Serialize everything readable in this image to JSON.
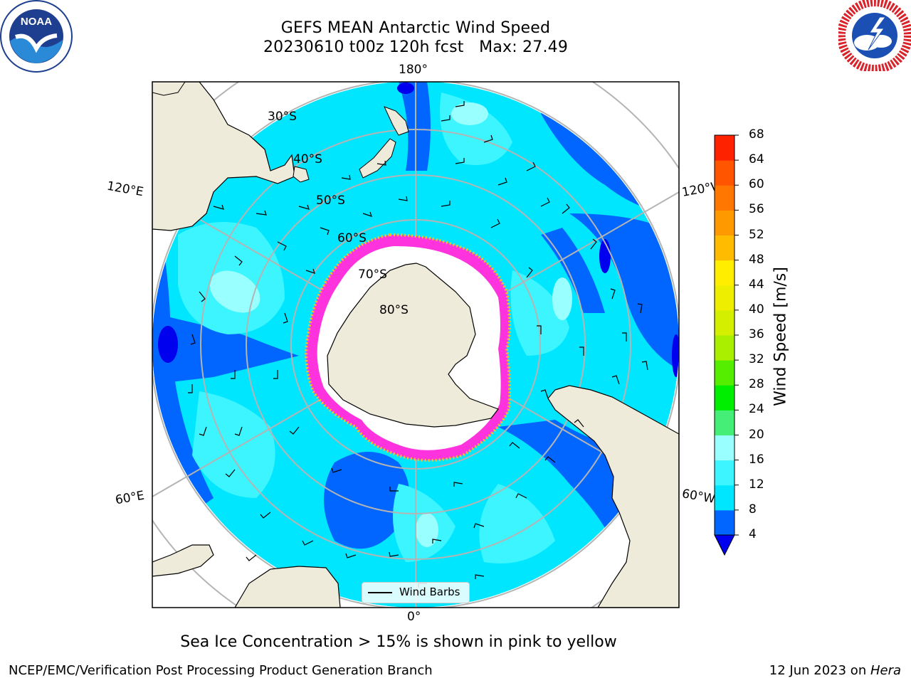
{
  "title": "GEFS MEAN Antarctic Wind Speed",
  "subtitle": {
    "run": "20230610 t00z 120h fcst",
    "max": "Max: 27.49"
  },
  "logos": {
    "left": {
      "icon": "noaa-logo",
      "text": "NOAA"
    },
    "right": {
      "icon": "national-weather-service-logo"
    }
  },
  "map": {
    "projection": "south-polar-stereographic",
    "longitude_labels": {
      "top": "180°",
      "bottom": "0°",
      "upper_left": "120°E",
      "upper_right": "120°W",
      "lower_left": "60°E",
      "lower_right": "60°W"
    },
    "latitude_labels": [
      "30°S",
      "40°S",
      "50°S",
      "60°S",
      "70°S",
      "80°S"
    ],
    "colors": {
      "land": "#efebda",
      "sea_ice_interior": "#ffffff",
      "sea_ice_edge_pink": "#ff33dd",
      "sea_ice_edge_yellow": "#ffc020",
      "gridline": "#b4b4b4"
    }
  },
  "legend": {
    "label": "Wind Barbs"
  },
  "colorbar": {
    "label": "Wind Speed [m/s]",
    "ticks": [
      "4",
      "8",
      "12",
      "16",
      "20",
      "24",
      "28",
      "32",
      "36",
      "40",
      "44",
      "48",
      "52",
      "56",
      "60",
      "64",
      "68"
    ],
    "colors": [
      "#0066ff",
      "#00e6ff",
      "#3cf5ff",
      "#99ffff",
      "#44ee77",
      "#00ee00",
      "#55ee00",
      "#aaee00",
      "#d4f000",
      "#eeee00",
      "#ffee00",
      "#ffbb00",
      "#ff9900",
      "#ff7700",
      "#ff5500",
      "#ff2200"
    ],
    "under_color": "#0000ee"
  },
  "caption": "Sea Ice Concentration > 15% is shown in pink to yellow",
  "footer": {
    "left": "NCEP/EMC/Verification Post Processing Product Generation Branch",
    "date": "12 Jun 2023 on ",
    "host": "Hera"
  }
}
